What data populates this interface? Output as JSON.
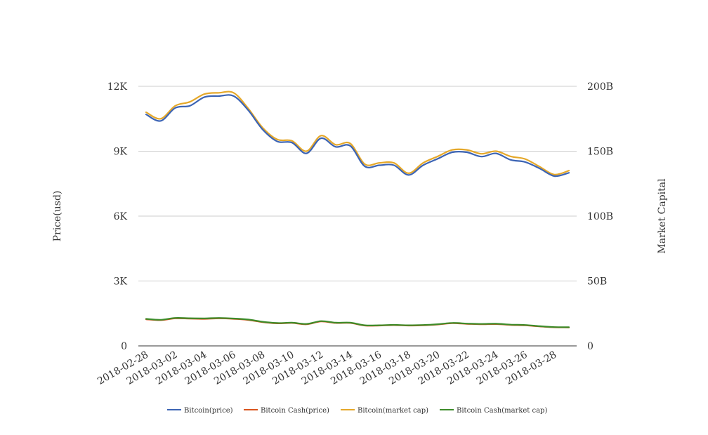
{
  "chart_data": {
    "type": "line",
    "title": "",
    "xlabel": "",
    "ylabel": "Price(usd)",
    "y2label": "Market Capital",
    "ylim": [
      0,
      12000
    ],
    "y2lim": [
      0,
      200000000000
    ],
    "y_ticks": [
      "0",
      "3K",
      "6K",
      "9K",
      "12K"
    ],
    "y2_ticks": [
      "0",
      "50B",
      "100B",
      "150B",
      "200B"
    ],
    "x_tick_labels": [
      "2018-02-28",
      "2018-03-02",
      "2018-03-04",
      "2018-03-06",
      "2018-03-08",
      "2018-03-10",
      "2018-03-12",
      "2018-03-14",
      "2018-03-16",
      "2018-03-18",
      "2018-03-20",
      "2018-03-22",
      "2018-03-24",
      "2018-03-26",
      "2018-03-28"
    ],
    "x": [
      "2018-02-28",
      "2018-03-01",
      "2018-03-02",
      "2018-03-03",
      "2018-03-04",
      "2018-03-05",
      "2018-03-06",
      "2018-03-07",
      "2018-03-08",
      "2018-03-09",
      "2018-03-10",
      "2018-03-11",
      "2018-03-12",
      "2018-03-13",
      "2018-03-14",
      "2018-03-15",
      "2018-03-16",
      "2018-03-17",
      "2018-03-18",
      "2018-03-19",
      "2018-03-20",
      "2018-03-21",
      "2018-03-22",
      "2018-03-23",
      "2018-03-24",
      "2018-03-25",
      "2018-03-26",
      "2018-03-27",
      "2018-03-28",
      "2018-03-29"
    ],
    "grid": true,
    "legend_position": "bottom",
    "series": [
      {
        "name": "Bitcoin(price)",
        "axis": "left",
        "color": "#3c64b4",
        "values": [
          10700,
          10400,
          11000,
          11100,
          11500,
          11550,
          11550,
          10900,
          10000,
          9450,
          9400,
          8900,
          9600,
          9200,
          9250,
          8300,
          8350,
          8350,
          7900,
          8350,
          8650,
          8950,
          8950,
          8750,
          8900,
          8600,
          8500,
          8200,
          7850,
          8000
        ]
      },
      {
        "name": "Bitcoin Cash(price)",
        "axis": "left",
        "color": "#d9541e",
        "values": [
          1230,
          1190,
          1270,
          1260,
          1250,
          1270,
          1250,
          1200,
          1100,
          1040,
          1060,
          1000,
          1130,
          1060,
          1060,
          940,
          940,
          960,
          940,
          950,
          990,
          1050,
          1020,
          1000,
          1010,
          970,
          950,
          900,
          860,
          850
        ]
      },
      {
        "name": "Bitcoin(market cap)",
        "axis": "right",
        "color": "#e5a82a",
        "values": [
          180000000000,
          175000000000,
          185000000000,
          188000000000,
          194000000000,
          195000000000,
          195000000000,
          183000000000,
          168000000000,
          159000000000,
          158000000000,
          150000000000,
          162000000000,
          155000000000,
          156000000000,
          140000000000,
          141000000000,
          141000000000,
          133000000000,
          141000000000,
          146000000000,
          151000000000,
          151000000000,
          148000000000,
          150000000000,
          146000000000,
          144000000000,
          138000000000,
          132000000000,
          135000000000
        ]
      },
      {
        "name": "Bitcoin Cash(market cap)",
        "axis": "right",
        "color": "#3d8c2a",
        "values": [
          20800000000,
          20100000000,
          21500000000,
          21300000000,
          21200000000,
          21500000000,
          21100000000,
          20300000000,
          18600000000,
          17600000000,
          17900000000,
          16900000000,
          19100000000,
          17900000000,
          17900000000,
          15900000000,
          15900000000,
          16200000000,
          15900000000,
          16100000000,
          16700000000,
          17700000000,
          17200000000,
          16900000000,
          17100000000,
          16400000000,
          16100000000,
          15200000000,
          14500000000,
          14400000000
        ]
      }
    ]
  }
}
